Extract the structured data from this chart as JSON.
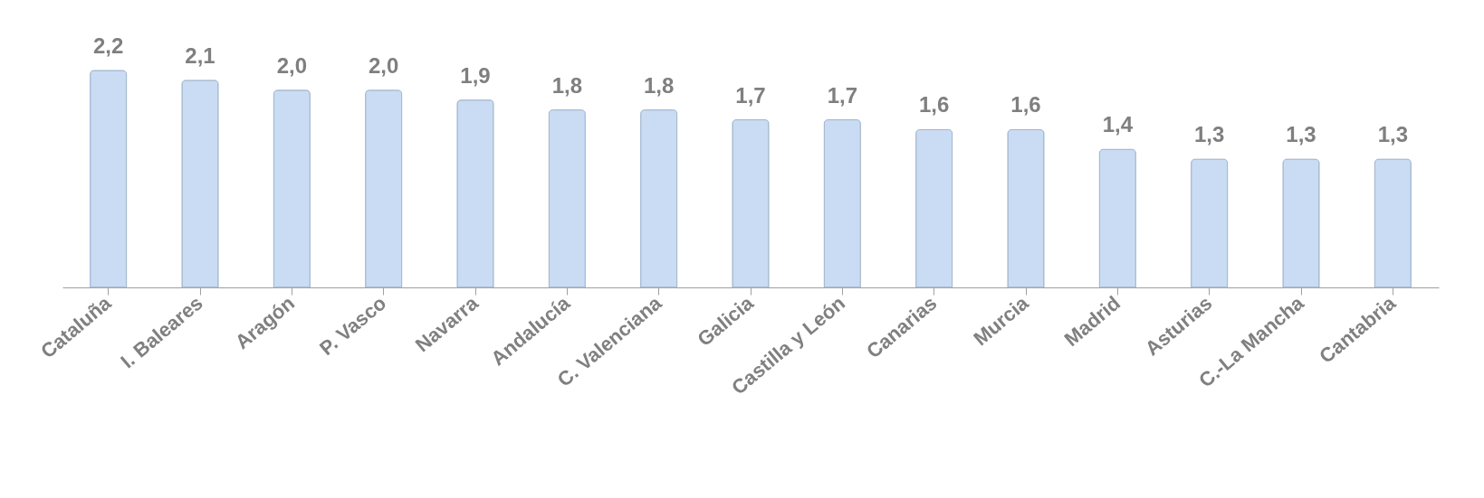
{
  "chart_data": {
    "type": "bar",
    "categories": [
      "Cataluña",
      "I. Baleares",
      "Aragón",
      "P. Vasco",
      "Navarra",
      "Andalucía",
      "C. Valenciana",
      "Galicia",
      "Castilla y León",
      "Canarias",
      "Murcia",
      "Madrid",
      "Asturias",
      "C.-La Mancha",
      "Cantabria"
    ],
    "values": [
      2.2,
      2.1,
      2.0,
      2.0,
      1.9,
      1.8,
      1.8,
      1.7,
      1.7,
      1.6,
      1.6,
      1.4,
      1.3,
      1.3,
      1.3
    ],
    "value_labels": [
      "2,2",
      "2,1",
      "2,0",
      "2,0",
      "1,9",
      "1,8",
      "1,8",
      "1,7",
      "1,7",
      "1,6",
      "1,6",
      "1,4",
      "1,3",
      "1,3",
      "1,3"
    ],
    "color": "#c9dcf3"
  }
}
